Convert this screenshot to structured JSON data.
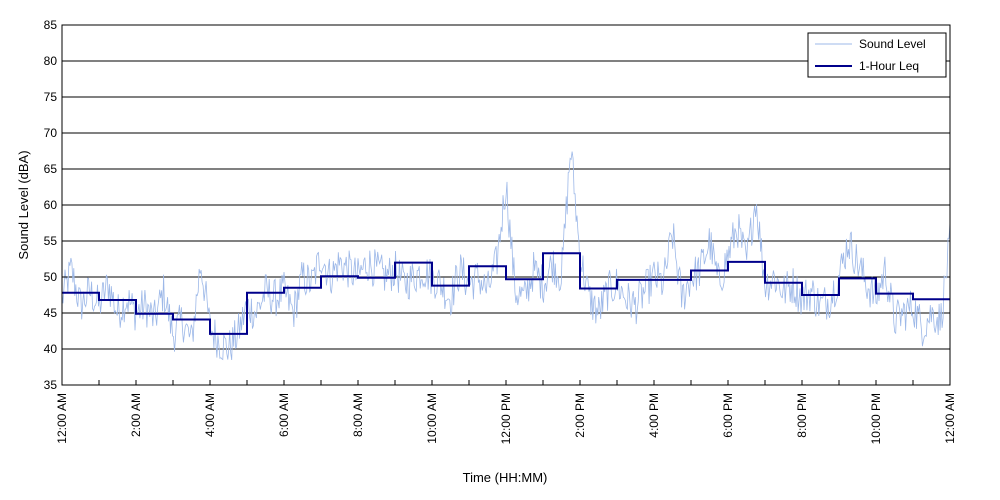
{
  "chart_data": {
    "type": "line",
    "title": "",
    "xlabel": "Time (HH:MM)",
    "ylabel": "Sound Level (dBA)",
    "ylim": [
      35,
      85
    ],
    "xlim_hours": [
      0,
      24
    ],
    "y_ticks": [
      35,
      40,
      45,
      50,
      55,
      60,
      65,
      70,
      75,
      80,
      85
    ],
    "x_tick_labels": [
      "12:00 AM",
      "2:00 AM",
      "4:00 AM",
      "6:00 AM",
      "8:00 AM",
      "10:00 AM",
      "12:00 PM",
      "2:00 PM",
      "4:00 PM",
      "6:00 PM",
      "8:00 PM",
      "10:00 PM",
      "12:00 AM"
    ],
    "grid": "horizontal",
    "legend_position": "top-right",
    "series": [
      {
        "name": "Sound Level",
        "style": "thin line",
        "color": "#9db8e8",
        "x_hours": [
          0,
          0.25,
          0.5,
          0.75,
          1,
          1.25,
          1.5,
          1.75,
          2,
          2.25,
          2.5,
          2.75,
          3,
          3.25,
          3.5,
          3.75,
          4,
          4.25,
          4.5,
          4.75,
          5,
          5.25,
          5.5,
          5.75,
          6,
          6.25,
          6.5,
          6.75,
          7,
          7.25,
          7.5,
          7.75,
          8,
          8.25,
          8.5,
          8.75,
          9,
          9.25,
          9.5,
          9.75,
          10,
          10.25,
          10.5,
          10.75,
          11,
          11.25,
          11.5,
          11.75,
          12,
          12.25,
          12.5,
          12.75,
          13,
          13.25,
          13.5,
          13.75,
          14,
          14.25,
          14.5,
          14.75,
          15,
          15.25,
          15.5,
          15.75,
          16,
          16.25,
          16.5,
          16.75,
          17,
          17.25,
          17.5,
          17.75,
          18,
          18.25,
          18.5,
          18.75,
          19,
          19.25,
          19.5,
          19.75,
          20,
          20.25,
          20.5,
          20.75,
          21,
          21.25,
          21.5,
          21.75,
          22,
          22.25,
          22.5,
          22.75,
          23,
          23.25,
          23.5,
          23.75,
          24
        ],
        "values": [
          47,
          51,
          46,
          48,
          46,
          49,
          45,
          47,
          45,
          46,
          44,
          48,
          42,
          44,
          41,
          52,
          43,
          41,
          40,
          42,
          46,
          45,
          48,
          47,
          48,
          45,
          50,
          49,
          53,
          50,
          52,
          51,
          50,
          52,
          51,
          50,
          51,
          49,
          50,
          51,
          50,
          49,
          47,
          51,
          49,
          50,
          48,
          52,
          63,
          48,
          47,
          51,
          49,
          52,
          50,
          68,
          53,
          47,
          45,
          48,
          49,
          47,
          46,
          48,
          50,
          49,
          56,
          47,
          50,
          51,
          55,
          49,
          53,
          57,
          52,
          61,
          49,
          50,
          48,
          49,
          47,
          48,
          46,
          47,
          50,
          55,
          52,
          49,
          47,
          51,
          44,
          45,
          46,
          43,
          45,
          44,
          55
        ]
      },
      {
        "name": "1-Hour Leq",
        "style": "step",
        "color": "#00008b",
        "hours": [
          0,
          1,
          2,
          3,
          4,
          5,
          6,
          7,
          8,
          9,
          10,
          11,
          12,
          13,
          14,
          15,
          16,
          17,
          18,
          19,
          20,
          21,
          22,
          23
        ],
        "values": [
          47.8,
          46.8,
          44.9,
          44.1,
          42.1,
          47.8,
          48.5,
          50.1,
          49.9,
          52.0,
          48.8,
          51.5,
          49.7,
          53.3,
          48.4,
          49.6,
          49.6,
          50.9,
          52.1,
          49.2,
          47.5,
          49.8,
          47.7,
          46.9
        ]
      }
    ]
  }
}
